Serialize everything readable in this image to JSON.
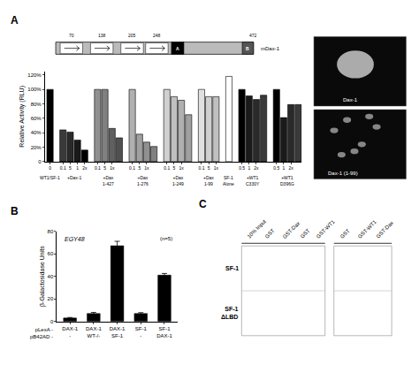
{
  "chart_data": [
    {
      "type": "bar",
      "panel_label": "A",
      "ylabel": "Relative Activity (RLU)",
      "ylim": [
        0,
        125
      ],
      "yticks": [
        0,
        {
          "value": 20,
          "label": "20%"
        },
        {
          "value": 40,
          "label": "40%"
        },
        {
          "value": 60,
          "label": "60%"
        },
        {
          "value": 80,
          "label": "80%"
        },
        {
          "value": 100,
          "label": "100%"
        },
        {
          "value": 120,
          "label": "120%"
        }
      ],
      "grid": false,
      "groups": [
        {
          "label": "WT1/SF-1",
          "categories": [
            "0"
          ],
          "values": [
            100
          ],
          "colors": [
            "#000000"
          ]
        },
        {
          "label": "+Dax-1",
          "categories": [
            "0.1",
            "5",
            "1",
            "2x"
          ],
          "values": [
            44,
            41,
            30,
            16
          ],
          "colors": [
            "#3a3a3a",
            "#2a2a2a",
            "#1a1a1a",
            "#000000"
          ]
        },
        {
          "label": "+Dax\n1-427",
          "categories": [
            "0.1",
            "5",
            "1x",
            null
          ],
          "values": [
            100,
            100,
            46,
            33
          ],
          "colors": [
            "#909090",
            "#808080",
            "#606060",
            "#505050"
          ]
        },
        {
          "label": "+Dax\n1-276",
          "categories": [
            "0.1",
            "5",
            "1x",
            null
          ],
          "values": [
            100,
            38,
            27,
            21
          ],
          "colors": [
            "#b0b0b0",
            "#a0a0a0",
            "#909090",
            "#808080"
          ]
        },
        {
          "label": "+Dax\n1-249",
          "categories": [
            "0.1",
            "5",
            "1x",
            null
          ],
          "values": [
            100,
            90,
            85,
            65
          ],
          "colors": [
            "#d0d0d0",
            "#c0c0c0",
            "#b0b0b0",
            "#a0a0a0"
          ]
        },
        {
          "label": "+Dax\n1-99",
          "categories": [
            "0.1",
            "5",
            "1x"
          ],
          "values": [
            100,
            90,
            90
          ],
          "colors": [
            "#e0e0e0",
            "#d0d0d0",
            "#c0c0c0"
          ]
        },
        {
          "label": "SF-1\nAlone",
          "categories": [
            null
          ],
          "values": [
            118
          ],
          "colors": [
            "#ffffff"
          ]
        },
        {
          "label": "+WT1\nC330Y",
          "categories": [
            "0.5",
            "1",
            "2x",
            null
          ],
          "values": [
            100,
            91,
            86,
            92
          ],
          "colors": [
            "#000000",
            "#1a1a1a",
            "#2a2a2a",
            "#3a3a3a"
          ]
        },
        {
          "label": "+WT1\nD396G",
          "categories": [
            "0.5",
            "1",
            "2x",
            null
          ],
          "values": [
            100,
            61,
            79,
            79
          ],
          "colors": [
            "#000000",
            "#1a1a1a",
            "#2a2a2a",
            "#3a3a3a"
          ]
        }
      ],
      "diagram": {
        "numbers": [
          "70",
          "138",
          "205",
          "248",
          "472"
        ],
        "label": "mDax-1",
        "domains": [
          "A",
          "B"
        ]
      },
      "images": [
        "Dax-1",
        "Dax-1 (1-99)"
      ]
    },
    {
      "type": "bar",
      "panel_label": "B",
      "ylabel": "β-Galactosidase Units",
      "categories": [
        "DAX-1\n-",
        "DAX-1\nWT-/-",
        "DAX-1\nSF-1",
        "SF-1\n-",
        "SF-1\nDAX-1"
      ],
      "category_rows": [
        "pLexA -",
        "pB42AD -"
      ],
      "values": [
        3,
        7,
        67,
        7,
        41
      ],
      "errors": [
        0.5,
        1.0,
        4.0,
        0.8,
        1.5
      ],
      "color": "#000000",
      "ylim": [
        0,
        80
      ],
      "yticks": [
        0,
        20,
        40,
        60,
        80
      ],
      "grid": false,
      "annotations": [
        {
          "text": "EGY48",
          "italic": true
        },
        {
          "text": "(n=5)"
        }
      ]
    },
    {
      "type": "gel",
      "panel_label": "C",
      "lanes": [
        [
          "10% Input",
          "GST",
          "GST-Dax",
          "GST",
          "GST-WT1"
        ],
        [
          "GST",
          "GST-WT1",
          "GST-Dax"
        ]
      ],
      "row_labels": [
        "SF-1",
        "SF-1\nΔLBD"
      ]
    }
  ]
}
